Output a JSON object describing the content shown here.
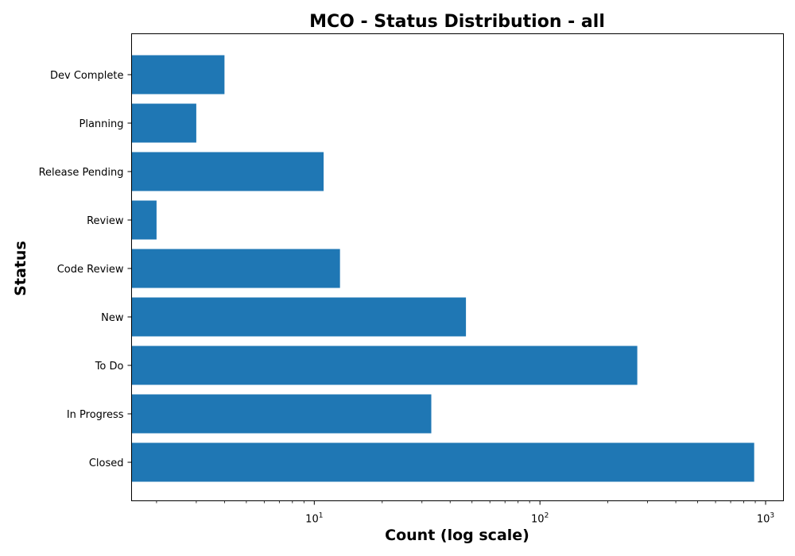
{
  "chart_data": {
    "type": "bar",
    "orientation": "horizontal",
    "title": "MCO - Status Distribution - all",
    "xlabel": "Count (log scale)",
    "ylabel": "Status",
    "xscale": "log",
    "xlim": [
      1.55,
      1200
    ],
    "x_ticks": [
      {
        "base": "10",
        "exp": "1",
        "value": 10
      },
      {
        "base": "10",
        "exp": "2",
        "value": 100
      },
      {
        "base": "10",
        "exp": "3",
        "value": 1000
      }
    ],
    "categories": [
      "Dev Complete",
      "Planning",
      "Release Pending",
      "Review",
      "Code Review",
      "New",
      "To Do",
      "In Progress",
      "Closed"
    ],
    "values": [
      4,
      3,
      11,
      2,
      13,
      47,
      270,
      33,
      890
    ],
    "bar_color": "#1f77b4",
    "grid": false,
    "legend": "none"
  }
}
